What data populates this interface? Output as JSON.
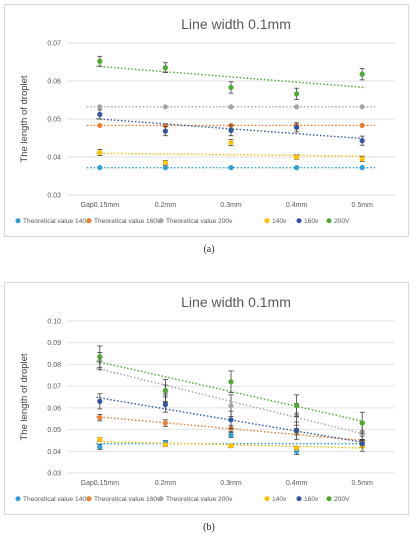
{
  "chart_data": [
    {
      "panel_label": "(a)",
      "type": "scatter",
      "title": "Line width 0.1mm",
      "ylabel": "The length of droplet",
      "xlabel": "",
      "categories": [
        "Gap0.15mm",
        "0.2mm",
        "0.3mm",
        "0.4mm",
        "0.5mm"
      ],
      "ylim": [
        0.03,
        0.07
      ],
      "yticks": [
        "0.03",
        "0.04",
        "0.05",
        "0.06",
        "0.07"
      ],
      "grid": true,
      "legend_position": "bottom",
      "series": [
        {
          "name": "Theoretical value 140v",
          "color": "#2e9fd8",
          "values": [
            0.0372,
            0.0372,
            0.0372,
            0.0372,
            0.0372
          ],
          "trend": false,
          "dotted": true
        },
        {
          "name": "Theoretical value 160v",
          "color": "#ed7d31",
          "values": [
            0.0483,
            0.0483,
            0.0483,
            0.0483,
            0.0483
          ],
          "trend": false,
          "dotted": true
        },
        {
          "name": "Theoretical value 200v",
          "color": "#a5a5a5",
          "values": [
            0.0532,
            0.0532,
            0.0532,
            0.0532,
            0.0532
          ],
          "trend": false,
          "dotted": true
        },
        {
          "name": "140v",
          "color": "#ffc000",
          "values": [
            0.0412,
            0.0385,
            0.0438,
            0.04,
            0.0395
          ],
          "errors": [
            0.0008,
            0.0006,
            0.0008,
            0.0006,
            0.0007
          ],
          "trend": true
        },
        {
          "name": "160v",
          "color": "#2f55a4",
          "values": [
            0.0512,
            0.0468,
            0.047,
            0.0478,
            0.0443
          ],
          "errors": [
            0.0012,
            0.0012,
            0.0014,
            0.0012,
            0.0012
          ],
          "trend": true
        },
        {
          "name": "200V",
          "color": "#4ea72e",
          "values": [
            0.0652,
            0.0635,
            0.0583,
            0.0566,
            0.0618
          ],
          "errors": [
            0.0013,
            0.0013,
            0.0015,
            0.0015,
            0.0015
          ],
          "trend": true
        }
      ]
    },
    {
      "panel_label": "(b)",
      "type": "scatter",
      "title": "Line width 0.1mm",
      "ylabel": "The length of droplet",
      "xlabel": "",
      "categories": [
        "Gap0.15mm",
        "0.2mm",
        "0.3mm",
        "0.4mm",
        "0.5mm"
      ],
      "ylim": [
        0.03,
        0.1
      ],
      "yticks": [
        "0.03",
        "0.04",
        "0.05",
        "0.06",
        "0.07",
        "0.08",
        "0.09",
        "0.10"
      ],
      "grid": true,
      "legend_position": "bottom",
      "series": [
        {
          "name": "Theoretical value 140v",
          "color": "#2e9fd8",
          "values": [
            0.042,
            0.044,
            0.0475,
            0.04,
            0.044
          ],
          "errors": [
            0.0012,
            0.001,
            0.0012,
            0.0015,
            0.0013
          ],
          "trend": true
        },
        {
          "name": "Theoretical value 160v",
          "color": "#ed7d31",
          "values": [
            0.0555,
            0.053,
            0.0505,
            0.049,
            0.044
          ],
          "errors": [
            0.0015,
            0.0015,
            0.0015,
            0.0015,
            0.0015
          ],
          "trend": true
        },
        {
          "name": "Theoretical value 200v",
          "color": "#a5a5a5",
          "values": [
            0.0815,
            0.0665,
            0.061,
            0.057,
            0.049
          ],
          "errors": [
            0.004,
            0.004,
            0.005,
            0.005,
            0.004
          ],
          "trend": true
        },
        {
          "name": "140v",
          "color": "#ffc000",
          "values": [
            0.0455,
            0.043,
            0.0425,
            0.0415,
            0.0425
          ],
          "errors": [
            0.0008,
            0.0008,
            0.0008,
            0.0008,
            0.0008
          ],
          "trend": true
        },
        {
          "name": "160v",
          "color": "#2f55a4",
          "values": [
            0.063,
            0.0615,
            0.0545,
            0.0495,
            0.0435
          ],
          "errors": [
            0.0035,
            0.0035,
            0.004,
            0.004,
            0.0035
          ],
          "trend": true
        },
        {
          "name": "200V",
          "color": "#4ea72e",
          "values": [
            0.0835,
            0.068,
            0.072,
            0.061,
            0.053
          ],
          "errors": [
            0.005,
            0.005,
            0.005,
            0.005,
            0.005
          ],
          "trend": true
        }
      ]
    }
  ]
}
